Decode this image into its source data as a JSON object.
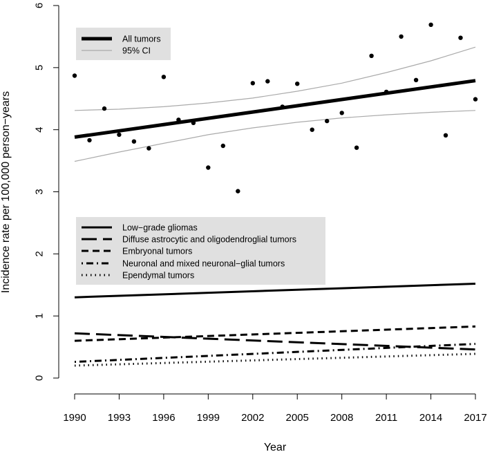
{
  "chart_data": {
    "type": "line",
    "xlabel": "Year",
    "ylabel": "Incidence rate per 100,000 person−years",
    "xlim": [
      1990,
      2017
    ],
    "ylim": [
      0,
      6
    ],
    "x_ticks": [
      "1990",
      "1993",
      "1996",
      "1999",
      "2002",
      "2005",
      "2008",
      "2011",
      "2014",
      "2017"
    ],
    "y_ticks": [
      "0",
      "1",
      "2",
      "3",
      "4",
      "5",
      "6"
    ],
    "grid": false,
    "observed_all_tumors": {
      "x": [
        1990,
        1991,
        1992,
        1993,
        1994,
        1995,
        1996,
        1997,
        1998,
        1999,
        2000,
        2001,
        2002,
        2003,
        2004,
        2005,
        2006,
        2007,
        2008,
        2009,
        2010,
        2011,
        2012,
        2013,
        2014,
        2015,
        2016,
        2017
      ],
      "y": [
        4.87,
        3.83,
        4.34,
        3.92,
        3.81,
        3.7,
        4.85,
        4.16,
        4.11,
        3.39,
        3.74,
        3.01,
        4.75,
        4.78,
        4.37,
        4.74,
        4.0,
        4.14,
        4.27,
        3.71,
        5.19,
        4.61,
        5.5,
        4.8,
        5.69,
        3.91,
        5.48,
        4.49
      ]
    },
    "series": [
      {
        "name": "All tumors",
        "x": [
          1990,
          2017
        ],
        "y": [
          3.88,
          4.79
        ],
        "color": "#000000",
        "width": 5,
        "dash": ""
      },
      {
        "name": "95% CI",
        "x": [
          1990,
          1993,
          1996,
          1999,
          2002,
          2005,
          2008,
          2011,
          2014,
          2017
        ],
        "y": [
          4.31,
          4.33,
          4.37,
          4.43,
          4.51,
          4.62,
          4.75,
          4.92,
          5.11,
          5.33
        ],
        "color": "#aaaaaa",
        "width": 1.2,
        "dash": ""
      },
      {
        "name": "",
        "x": [
          1990,
          1993,
          1996,
          1999,
          2002,
          2005,
          2008,
          2011,
          2014,
          2017
        ],
        "y": [
          3.49,
          3.64,
          3.78,
          3.92,
          4.03,
          4.12,
          4.19,
          4.24,
          4.28,
          4.31
        ],
        "color": "#aaaaaa",
        "width": 1.2,
        "dash": ""
      },
      {
        "name": "Low−grade gliomas",
        "x": [
          1990,
          2017
        ],
        "y": [
          1.3,
          1.52
        ],
        "color": "#000000",
        "width": 3,
        "dash": ""
      },
      {
        "name": "Diffuse astrocytic and oligodendroglial tumors",
        "x": [
          1990,
          2017
        ],
        "y": [
          0.72,
          0.46
        ],
        "color": "#000000",
        "width": 3,
        "dash": "22 9"
      },
      {
        "name": "Embryonal tumors",
        "x": [
          1990,
          2017
        ],
        "y": [
          0.6,
          0.83
        ],
        "color": "#000000",
        "width": 3,
        "dash": "10 6"
      },
      {
        "name": "Neuronal and mixed neuronal−glial tumors",
        "x": [
          1990,
          2017
        ],
        "y": [
          0.26,
          0.55
        ],
        "color": "#000000",
        "width": 3,
        "dash": "2 5 10 5"
      },
      {
        "name": "Ependymal tumors",
        "x": [
          1990,
          2017
        ],
        "y": [
          0.2,
          0.39
        ],
        "color": "#000000",
        "width": 3,
        "dash": "1.5 5"
      }
    ],
    "legends": [
      {
        "placement": "top-left",
        "entries": [
          "All tumors",
          "95% CI"
        ]
      },
      {
        "placement": "middle-left",
        "entries": [
          "Low−grade gliomas",
          "Diffuse astrocytic and oligodendroglial tumors",
          "Embryonal tumors",
          "Neuronal and mixed neuronal−glial tumors",
          "Ependymal tumors"
        ]
      }
    ]
  }
}
